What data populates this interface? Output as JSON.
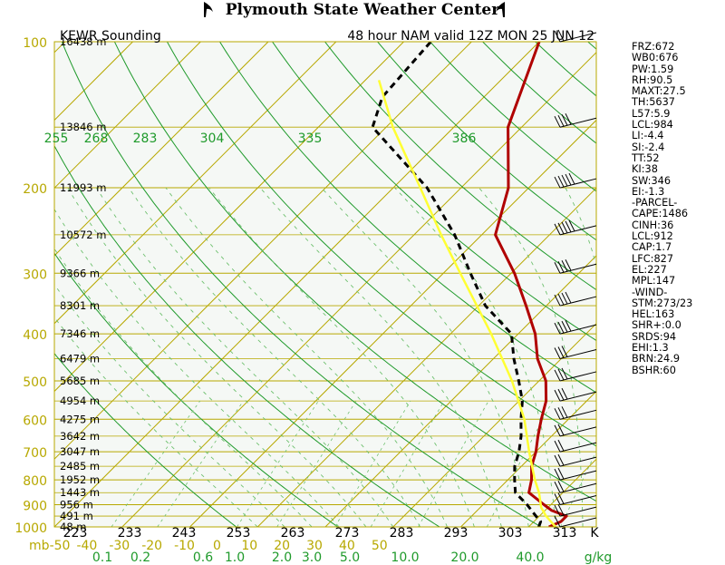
{
  "header": {
    "title": "Plymouth State Weather Center"
  },
  "chart_data": {
    "type": "line",
    "title_left": "KEWR Sounding",
    "title_right": "48 hour NAM valid 12Z MON 25 JUN 12",
    "pressure_unit": "mb",
    "pressure_levels": [
      100,
      200,
      300,
      400,
      500,
      600,
      700,
      800,
      900,
      1000
    ],
    "pressure_range": [
      100,
      1000
    ],
    "x_range_celsius": [
      -50,
      30
    ],
    "temperature_ticks": [
      -50,
      -40,
      -30,
      -20,
      -10,
      0,
      10,
      20,
      30,
      40,
      50
    ],
    "temperature_tick_labels": [
      "-50",
      "-40",
      "-30",
      "-20",
      "-10",
      "0",
      "10",
      "20",
      "30",
      "40",
      "50"
    ],
    "mixing_ratio_unit": "g/kg",
    "mixing_ratio_labels": [
      "0.1",
      "0.2",
      "0.6",
      "1.0",
      "2.0",
      "3.0",
      "5.0",
      "10.0",
      "20.0",
      "40.0"
    ],
    "kelvin_unit": "K",
    "kelvin_labels": [
      "223",
      "233",
      "243",
      "253",
      "263",
      "273",
      "283",
      "293",
      "303",
      "313"
    ],
    "theta_labels": [
      "255",
      "268",
      "283",
      "304",
      "335",
      "386"
    ],
    "height_labels": [
      {
        "p": 100,
        "text": "16438 m"
      },
      {
        "p": 150,
        "text": "13846 m"
      },
      {
        "p": 200,
        "text": "11993 m"
      },
      {
        "p": 250,
        "text": "10572 m"
      },
      {
        "p": 300,
        "text": "9366 m"
      },
      {
        "p": 350,
        "text": "8301 m"
      },
      {
        "p": 400,
        "text": "7346 m"
      },
      {
        "p": 450,
        "text": "6479 m"
      },
      {
        "p": 500,
        "text": "5685 m"
      },
      {
        "p": 550,
        "text": "4954 m"
      },
      {
        "p": 600,
        "text": "4275 m"
      },
      {
        "p": 650,
        "text": "3642 m"
      },
      {
        "p": 700,
        "text": "3047 m"
      },
      {
        "p": 750,
        "text": "2485 m"
      },
      {
        "p": 800,
        "text": "1952 m"
      },
      {
        "p": 850,
        "text": "1443 m"
      },
      {
        "p": 900,
        "text": "956 m"
      },
      {
        "p": 950,
        "text": "491 m"
      },
      {
        "p": 1000,
        "text": "48 m"
      }
    ],
    "series": [
      {
        "name": "Temperature",
        "color": "#b00000",
        "style": "solid",
        "points": [
          [
            1000,
            23
          ],
          [
            975,
            24
          ],
          [
            950,
            24
          ],
          [
            925,
            21
          ],
          [
            900,
            19
          ],
          [
            850,
            15
          ],
          [
            800,
            13.5
          ],
          [
            750,
            11.5
          ],
          [
            700,
            10
          ],
          [
            650,
            8
          ],
          [
            600,
            6
          ],
          [
            550,
            4
          ],
          [
            500,
            1
          ],
          [
            450,
            -3.5
          ],
          [
            400,
            -7.5
          ],
          [
            350,
            -13
          ],
          [
            300,
            -19.5
          ],
          [
            250,
            -28
          ],
          [
            200,
            -33
          ],
          [
            150,
            -42
          ],
          [
            100,
            -50
          ]
        ]
      },
      {
        "name": "Dewpoint",
        "color": "#000000",
        "style": "dashed",
        "points": [
          [
            1000,
            21.5
          ],
          [
            975,
            21
          ],
          [
            950,
            19.5
          ],
          [
            900,
            16.5
          ],
          [
            850,
            13
          ],
          [
            800,
            11
          ],
          [
            750,
            9
          ],
          [
            700,
            7.5
          ],
          [
            650,
            5.5
          ],
          [
            600,
            3
          ],
          [
            550,
            0.5
          ],
          [
            500,
            -3
          ],
          [
            450,
            -7
          ],
          [
            400,
            -11
          ],
          [
            350,
            -19
          ],
          [
            300,
            -26
          ],
          [
            250,
            -34
          ],
          [
            200,
            -45
          ],
          [
            150,
            -62
          ],
          [
            130,
            -65
          ],
          [
            100,
            -66
          ]
        ]
      },
      {
        "name": "Parcel",
        "color": "#ffff33",
        "style": "solid",
        "points": [
          [
            1000,
            24
          ],
          [
            950,
            21
          ],
          [
            912,
            19
          ],
          [
            850,
            16.5
          ],
          [
            800,
            14
          ],
          [
            700,
            9
          ],
          [
            600,
            3.5
          ],
          [
            500,
            -4
          ],
          [
            400,
            -14
          ],
          [
            300,
            -27.5
          ],
          [
            250,
            -36
          ],
          [
            200,
            -46
          ],
          [
            150,
            -59
          ],
          [
            120,
            -68
          ]
        ]
      }
    ],
    "wind_barbs": [
      {
        "p": 100,
        "speed_kt": 20
      },
      {
        "p": 150,
        "speed_kt": 40
      },
      {
        "p": 200,
        "speed_kt": 45
      },
      {
        "p": 250,
        "speed_kt": 45
      },
      {
        "p": 300,
        "speed_kt": 40
      },
      {
        "p": 350,
        "speed_kt": 40
      },
      {
        "p": 400,
        "speed_kt": 35
      },
      {
        "p": 450,
        "speed_kt": 30
      },
      {
        "p": 500,
        "speed_kt": 30
      },
      {
        "p": 550,
        "speed_kt": 30
      },
      {
        "p": 600,
        "speed_kt": 25
      },
      {
        "p": 650,
        "speed_kt": 20
      },
      {
        "p": 700,
        "speed_kt": 20
      },
      {
        "p": 750,
        "speed_kt": 20
      },
      {
        "p": 800,
        "speed_kt": 20
      },
      {
        "p": 850,
        "speed_kt": 20
      },
      {
        "p": 900,
        "speed_kt": 15
      },
      {
        "p": 950,
        "speed_kt": 15
      },
      {
        "p": 1000,
        "speed_kt": 10
      }
    ]
  },
  "parameters": [
    "FRZ:672",
    "WB0:676",
    "PW:1.59",
    "RH:90.5",
    "MAXT:27.5",
    "TH:5637",
    "L57:5.9",
    "LCL:984",
    "LI:-4.4",
    "SI:-2.4",
    "TT:52",
    "KI:38",
    "SW:346",
    "EI:-1.3",
    "-PARCEL-",
    "CAPE:1486",
    "CINH:36",
    "LCL:912",
    "CAP:1.7",
    "LFC:827",
    "EL:227",
    "MPL:147",
    "-WIND-",
    "STM:273/23",
    "HEL:163",
    "SHR+:0.0",
    "SRDS:94",
    "EHI:1.3",
    "BRN:24.9",
    "BSHR:60"
  ]
}
